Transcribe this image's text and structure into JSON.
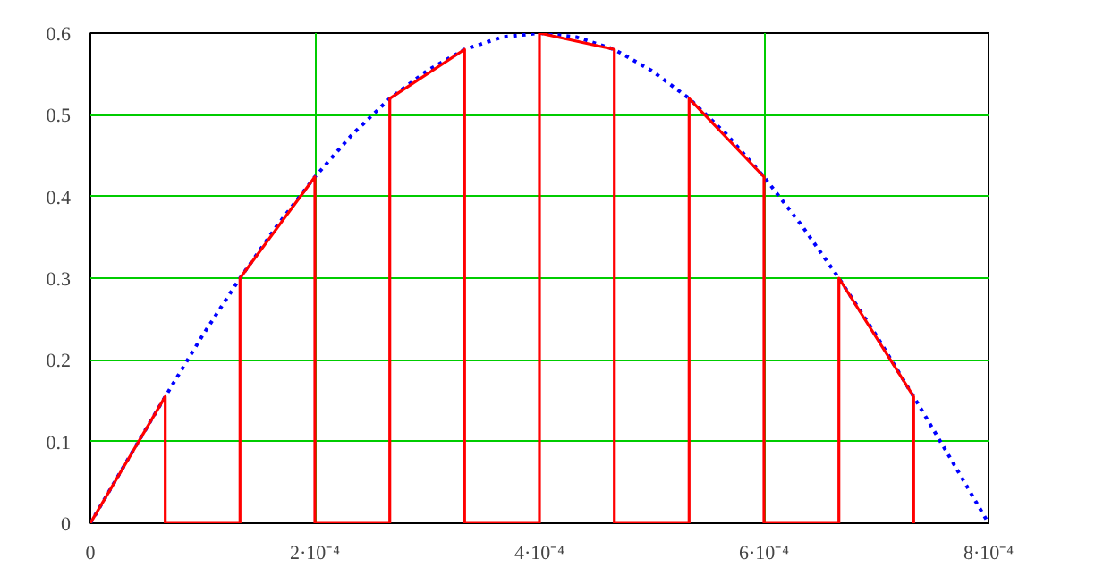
{
  "chart_data": {
    "type": "line",
    "xlim": [
      0,
      0.0008
    ],
    "ylim": [
      0,
      0.6
    ],
    "xticks": [
      0,
      {
        "value": 0.0002,
        "label": "2·10⁻⁴"
      },
      {
        "value": 0.0004,
        "label": "4·10⁻⁴"
      },
      {
        "value": 0.0006,
        "label": "6·10⁻⁴"
      },
      {
        "value": 0.0008,
        "label": "8·10⁻⁴"
      }
    ],
    "yticks": [
      0,
      0.1,
      0.2,
      0.3,
      0.4,
      0.5,
      0.6
    ],
    "grid": true,
    "marker": "none",
    "series": [
      {
        "color": "#0000ff",
        "line_style": "dotted",
        "x": [
          0,
          3.333e-05,
          6.667e-05,
          0.0001,
          0.0001333,
          0.0001667,
          0.0002,
          0.0002333,
          0.0002667,
          0.0003,
          0.0003333,
          0.0003667,
          0.0004,
          0.0004333,
          0.0004667,
          0.0005,
          0.0005333,
          0.0005667,
          0.0006,
          0.0006333,
          0.0006667,
          0.0007,
          0.0007333,
          0.0007667,
          0.0008
        ],
        "values": [
          0,
          0.078,
          0.155,
          0.23,
          0.3,
          0.365,
          0.424,
          0.476,
          0.52,
          0.554,
          0.58,
          0.595,
          0.6,
          0.595,
          0.58,
          0.554,
          0.52,
          0.476,
          0.424,
          0.365,
          0.3,
          0.23,
          0.155,
          0.078,
          0
        ]
      },
      {
        "color": "#ff0000",
        "line_style": "solid",
        "x": [
          0,
          6.667e-05,
          6.667e-05,
          0.0001333,
          0.0001333,
          0.0002,
          0.0002,
          0.0002667,
          0.0002667,
          0.0003333,
          0.0003333,
          0.0004,
          0.0004,
          0.0004667,
          0.0004667,
          0.0005333,
          0.0005333,
          0.0006,
          0.0006,
          0.0006667,
          0.0006667,
          0.0007333,
          0.0007333
        ],
        "values": [
          0,
          0.155,
          0,
          0,
          0.3,
          0.424,
          0,
          0,
          0.52,
          0.58,
          0,
          0,
          0.6,
          0.58,
          0,
          0,
          0.52,
          0.424,
          0,
          0,
          0.3,
          0.155,
          0
        ]
      }
    ]
  }
}
